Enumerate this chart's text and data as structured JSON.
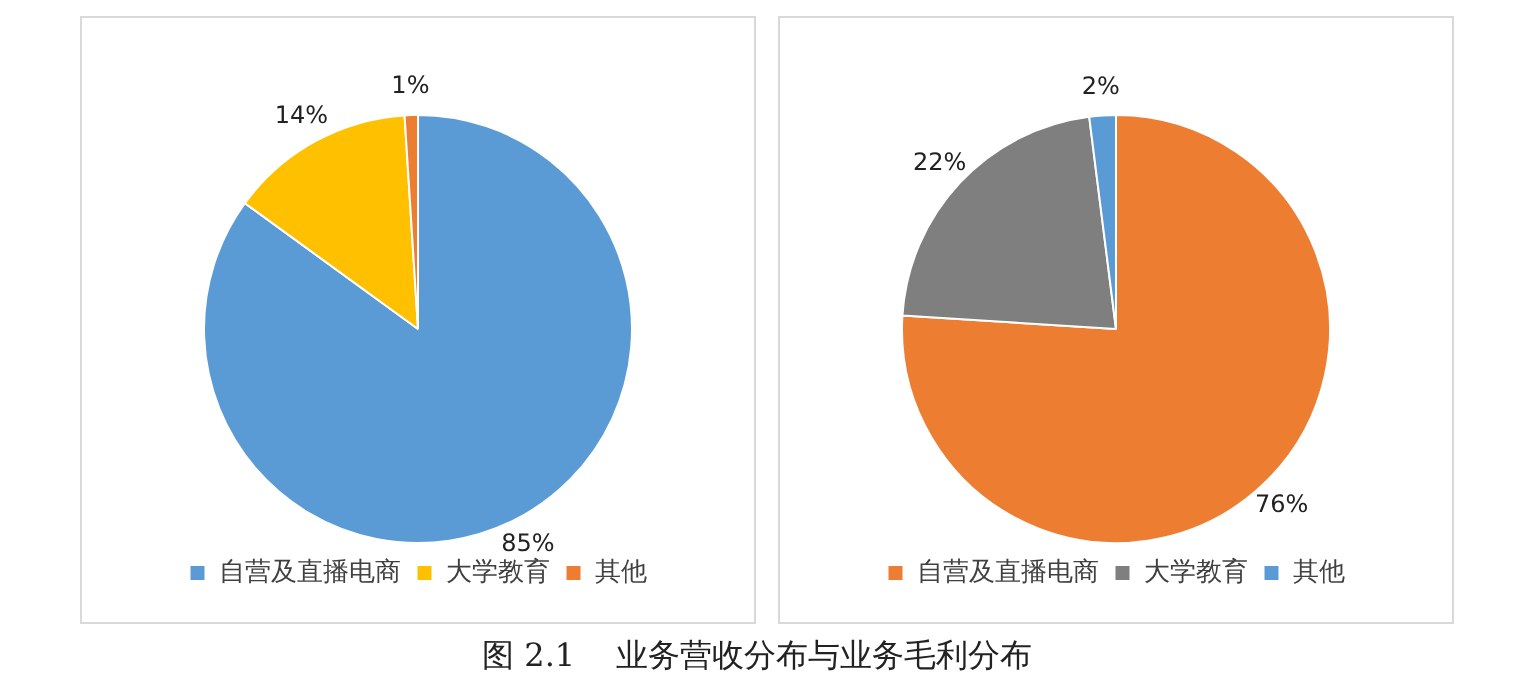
{
  "chart_data": [
    {
      "type": "pie",
      "categories": [
        "自营及直播电商",
        "大学教育",
        "其他"
      ],
      "values": [
        85,
        14,
        1
      ],
      "colors": [
        "#5b9bd5",
        "#ffc000",
        "#ed7d31"
      ],
      "value_labels": [
        "85%",
        "14%",
        "1%"
      ],
      "legend": "bottom",
      "annotations": [
        "图 2.1    业务营收分布与业务毛利分布"
      ]
    },
    {
      "type": "pie",
      "categories": [
        "自营及直播电商",
        "大学教育",
        "其他"
      ],
      "values": [
        76,
        22,
        2
      ],
      "colors": [
        "#ed7d31",
        "#7f7f7f",
        "#5b9bd5"
      ],
      "value_labels": [
        "76%",
        "22%",
        "2%"
      ],
      "legend": "bottom"
    }
  ]
}
